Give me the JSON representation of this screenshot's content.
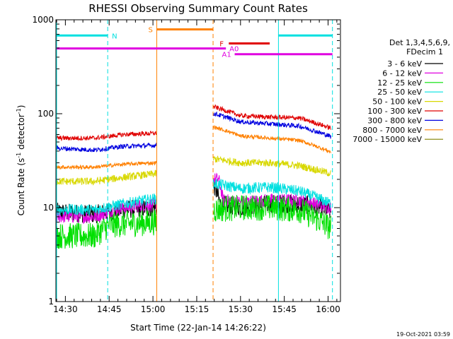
{
  "chart_data": {
    "type": "line",
    "title": "RHESSI Observing Summary Count Rates",
    "xlabel": "Start Time (22-Jan-14 14:26:22)",
    "ylabel_main": "Count Rate (s",
    "ylabel_sup1": "-1",
    "ylabel_mid": " detector",
    "ylabel_sup2": "-1",
    "ylabel_end": ")",
    "yscale": "log",
    "ylim": [
      1,
      1000
    ],
    "xlim_minutes": [
      -3,
      94
    ],
    "x_tick_labels": [
      "14:30",
      "14:45",
      "15:00",
      "15:15",
      "15:30",
      "15:45",
      "16:00"
    ],
    "x_tick_minutes": [
      0,
      15,
      30,
      45,
      60,
      75,
      90
    ],
    "y_tick_labels": [
      "1",
      "10",
      "100",
      "1000"
    ],
    "y_tick_values": [
      1,
      10,
      100,
      1000
    ],
    "legend_header": [
      "Det 1,3,4,5,6,9,",
      "FDecim 1"
    ],
    "footer_date": "19-Oct-2021 03:59",
    "gaps_minutes": [
      [
        31.3,
        50.6
      ]
    ],
    "series": [
      {
        "name": "3 - 6 keV",
        "color": "#000000",
        "noise": 0.1,
        "points": [
          [
            -3,
            9
          ],
          [
            10,
            8.5
          ],
          [
            20,
            9.5
          ],
          [
            31,
            10
          ],
          [
            51,
            17
          ],
          [
            53,
            11
          ],
          [
            60,
            10
          ],
          [
            70,
            11
          ],
          [
            80,
            11
          ],
          [
            85,
            10.5
          ],
          [
            91,
            9
          ]
        ]
      },
      {
        "name": "6 - 12 keV",
        "color": "#e000e0",
        "noise": 0.07,
        "points": [
          [
            -3,
            8
          ],
          [
            10,
            8
          ],
          [
            20,
            10
          ],
          [
            31,
            11
          ],
          [
            51,
            20
          ],
          [
            52.5,
            20
          ],
          [
            54,
            12
          ],
          [
            60,
            11.5
          ],
          [
            70,
            12
          ],
          [
            80,
            12
          ],
          [
            91,
            10
          ]
        ]
      },
      {
        "name": "12 - 25 keV",
        "color": "#00e000",
        "noise": 0.14,
        "points": [
          [
            -3,
            5
          ],
          [
            10,
            5
          ],
          [
            15,
            6.5
          ],
          [
            31,
            7
          ],
          [
            51,
            9.5
          ],
          [
            60,
            10
          ],
          [
            70,
            10
          ],
          [
            80,
            9.5
          ],
          [
            91,
            6
          ]
        ]
      },
      {
        "name": "25 - 50 keV",
        "color": "#00e0e0",
        "noise": 0.06,
        "points": [
          [
            -3,
            9.5
          ],
          [
            10,
            9.5
          ],
          [
            20,
            11
          ],
          [
            31,
            12.5
          ],
          [
            51,
            18
          ],
          [
            60,
            16
          ],
          [
            70,
            16.5
          ],
          [
            80,
            15
          ],
          [
            91,
            11
          ]
        ]
      },
      {
        "name": "50 - 100 keV",
        "color": "#d8d800",
        "noise": 0.04,
        "points": [
          [
            -3,
            19
          ],
          [
            10,
            19
          ],
          [
            20,
            21
          ],
          [
            31,
            23
          ],
          [
            51,
            33
          ],
          [
            60,
            30
          ],
          [
            70,
            30
          ],
          [
            80,
            28
          ],
          [
            91,
            23
          ]
        ]
      },
      {
        "name": "100 - 300 keV",
        "color": "#e00000",
        "noise": 0.025,
        "points": [
          [
            -3,
            55
          ],
          [
            10,
            55
          ],
          [
            20,
            60
          ],
          [
            31,
            62
          ],
          [
            51,
            118
          ],
          [
            60,
            95
          ],
          [
            70,
            92
          ],
          [
            80,
            90
          ],
          [
            91,
            70
          ]
        ]
      },
      {
        "name": "300 - 800 keV",
        "color": "#0000e0",
        "noise": 0.025,
        "points": [
          [
            -3,
            43
          ],
          [
            10,
            41
          ],
          [
            20,
            45
          ],
          [
            31,
            46
          ],
          [
            51,
            100
          ],
          [
            60,
            82
          ],
          [
            70,
            78
          ],
          [
            80,
            74
          ],
          [
            91,
            57
          ]
        ]
      },
      {
        "name": "800 - 7000 keV",
        "color": "#ff8000",
        "noise": 0.02,
        "points": [
          [
            -3,
            27
          ],
          [
            10,
            27
          ],
          [
            20,
            29
          ],
          [
            31,
            30
          ],
          [
            51,
            72
          ],
          [
            60,
            58
          ],
          [
            70,
            55
          ],
          [
            80,
            52
          ],
          [
            91,
            39
          ]
        ]
      },
      {
        "name": "7000 - 15000 keV",
        "color": "#808000",
        "noise": 0,
        "points": []
      }
    ],
    "annotations": {
      "saa": {
        "label": "S",
        "color": "#ff8000",
        "start_min": 31.3,
        "end_min": 50.6,
        "level": 790
      },
      "night": [
        {
          "label": "N",
          "color": "#00e0e0",
          "start_min": -3,
          "end_min": 14.5,
          "level": 680
        },
        {
          "label": "",
          "color": "#00e0e0",
          "start_min": 73,
          "end_min": 91.5,
          "level": 680
        }
      ],
      "flare": {
        "label": "F",
        "color": "#e00000",
        "start_min": 56,
        "end_min": 70,
        "level": 560
      },
      "attenuator_a0": {
        "label": "A0",
        "color": "#e000e0",
        "start_min": -3,
        "end_min": 55,
        "level": 495
      },
      "attenuator_a1": {
        "label": "A1",
        "color": "#e000e0",
        "start_min": 58,
        "end_min": 91.5,
        "level": 430
      },
      "vlines": [
        {
          "min": -3,
          "color": "#00e0e0",
          "dashed": false
        },
        {
          "min": 14.5,
          "color": "#00e0e0",
          "dashed": true
        },
        {
          "min": 31.3,
          "color": "#ff8000",
          "dashed": false
        },
        {
          "min": 50.6,
          "color": "#ff8000",
          "dashed": true
        },
        {
          "min": 73,
          "color": "#00e0e0",
          "dashed": false
        },
        {
          "min": 91.5,
          "color": "#00e0e0",
          "dashed": true
        }
      ]
    }
  }
}
